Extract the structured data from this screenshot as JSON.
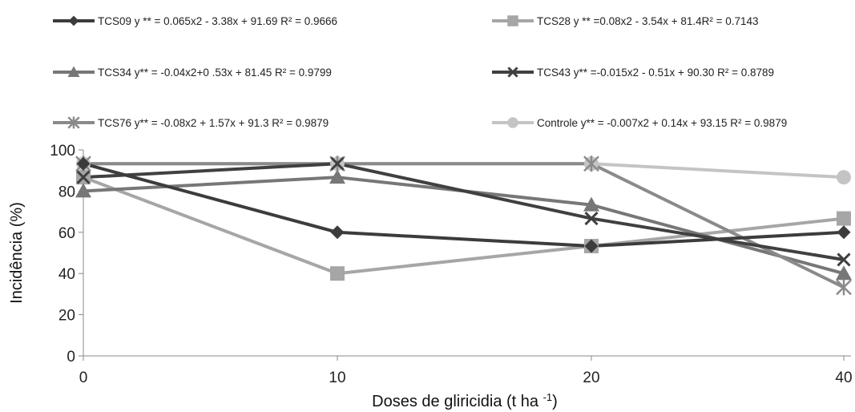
{
  "chart_data": {
    "type": "line",
    "title": "",
    "xlabel": "Doses de gliricidia (t ha ",
    "xlabel_sup": "-1",
    "xlabel_end": ")",
    "ylabel": "Incidência (%)",
    "categories": [
      "0",
      "10",
      "20",
      "40"
    ],
    "y_ticks": [
      "0",
      "20",
      "40",
      "60",
      "80",
      "100"
    ],
    "ylim": [
      0,
      100
    ],
    "grid": false,
    "legend_position": "top",
    "series": [
      {
        "name": "TCS09",
        "legend": "TCS09 y ** =  0.065x2 - 3.38x + 91.69  R² = 0.9666",
        "color": "#3c3c3c",
        "marker": "diamond",
        "values": [
          93.3,
          60,
          53.3,
          60
        ]
      },
      {
        "name": "TCS28",
        "legend": "TCS28 y ** =0.08x2 - 3.54x + 81.4R² = 0.7143",
        "color": "#a6a6a6",
        "marker": "square",
        "values": [
          86.7,
          40,
          53.3,
          66.7
        ]
      },
      {
        "name": "TCS34",
        "legend": "TCS34 y** = -0.04x2+0 .53x + 81.45  R² = 0.9799",
        "color": "#777777",
        "marker": "triangle",
        "values": [
          80,
          86.7,
          73.3,
          40
        ]
      },
      {
        "name": "TCS43",
        "legend": "TCS43 y** =-0.015x2 - 0.51x + 90.30  R² = 0.8789",
        "color": "#404040",
        "marker": "x",
        "values": [
          86.7,
          93.3,
          66.7,
          46.7
        ]
      },
      {
        "name": "TCS76",
        "legend": "TCS76 y** = -0.08x2 + 1.57x + 91.3 R² = 0.9879",
        "color": "#8a8a8a",
        "marker": "star",
        "values": [
          93.3,
          93.3,
          93.3,
          33.3
        ]
      },
      {
        "name": "Controle",
        "legend": "Controle y** = -0.007x2 + 0.14x + 93.15  R² = 0.9879",
        "color": "#c4c4c4",
        "marker": "circle",
        "values": [
          93.3,
          93.3,
          93.3,
          86.7
        ]
      }
    ]
  }
}
